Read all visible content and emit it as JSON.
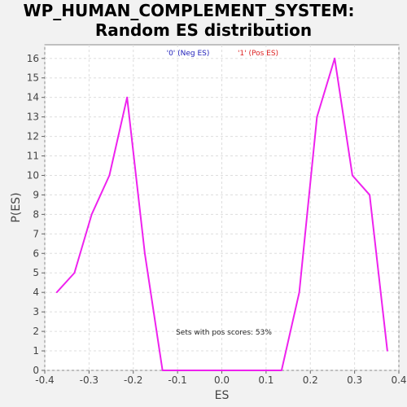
{
  "chart_data": {
    "type": "line",
    "title_lines": [
      "WP_HUMAN_COMPLEMENT_SYSTEM:",
      "Random ES distribution"
    ],
    "xlabel": "ES",
    "ylabel": "P(ES)",
    "xlim": [
      -0.4,
      0.4
    ],
    "ylim": [
      0,
      16.7
    ],
    "x_ticks": [
      -0.4,
      -0.3,
      -0.2,
      -0.1,
      0.0,
      0.1,
      0.2,
      0.3,
      0.4
    ],
    "x_tick_labels": [
      "-0.4",
      "-0.3",
      "-0.2",
      "-0.1",
      "0.0",
      "0.1",
      "0.2",
      "0.3",
      "0.4"
    ],
    "y_ticks": [
      0,
      1,
      2,
      3,
      4,
      5,
      6,
      7,
      8,
      9,
      10,
      11,
      12,
      13,
      14,
      15,
      16
    ],
    "y_tick_labels": [
      "0",
      "1",
      "2",
      "3",
      "4",
      "5",
      "6",
      "7",
      "8",
      "9",
      "10",
      "11",
      "12",
      "13",
      "14",
      "15",
      "16"
    ],
    "grid": true,
    "legend": [
      {
        "label": "'0' (Neg ES)",
        "color": "#2222bb"
      },
      {
        "label": "'1' (Pos ES)",
        "color": "#dd2222"
      }
    ],
    "series": [
      {
        "color": "#ee22ee",
        "x": [
          -0.373,
          -0.333,
          -0.294,
          -0.254,
          -0.214,
          -0.174,
          -0.134,
          -0.094,
          -0.055,
          -0.015,
          0.025,
          0.065,
          0.105,
          0.135,
          0.175,
          0.215,
          0.255,
          0.295,
          0.334,
          0.374
        ],
        "y": [
          4,
          5,
          8,
          10,
          14,
          6,
          0,
          0,
          0,
          0,
          0,
          0,
          0,
          0,
          4,
          13,
          16,
          10,
          9,
          1
        ]
      }
    ],
    "annotation": "Sets with pos scores: 53%"
  }
}
